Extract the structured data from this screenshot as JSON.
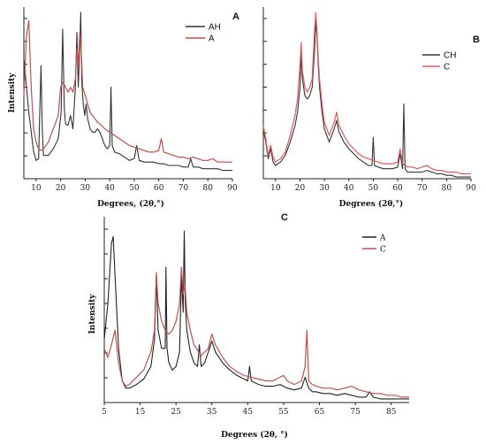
{
  "chart_data": [
    {
      "type": "line",
      "panel_label": "A",
      "xlabel": "Degrees, (2θ,°)",
      "ylabel": "Intensity",
      "xlim": [
        5,
        90
      ],
      "xticks": [
        10,
        20,
        30,
        40,
        50,
        60,
        70,
        80,
        90
      ],
      "legend": "top-right",
      "grid": false,
      "series": [
        {
          "name": "AH",
          "color": "#333333",
          "x": [
            5,
            7,
            9,
            10,
            11,
            11.5,
            12,
            12.5,
            13,
            15,
            17,
            19,
            20.2,
            20.8,
            21.5,
            22,
            23,
            24,
            25,
            25.5,
            26,
            26.6,
            27.2,
            27.8,
            28.2,
            28.6,
            29.2,
            29.8,
            30.4,
            31,
            32,
            33,
            34,
            35,
            36,
            37,
            38,
            39,
            40,
            40.5,
            41,
            42,
            44,
            46,
            48,
            50,
            51,
            52,
            54,
            56,
            58,
            60,
            62,
            64,
            66,
            68,
            70,
            72,
            73,
            74,
            76,
            78,
            80,
            82,
            84,
            86,
            88,
            90
          ],
          "y": [
            0.72,
            0.4,
            0.16,
            0.11,
            0.12,
            0.4,
            0.68,
            0.3,
            0.14,
            0.14,
            0.18,
            0.24,
            0.4,
            0.9,
            0.42,
            0.33,
            0.32,
            0.38,
            0.3,
            0.42,
            0.55,
            0.88,
            0.55,
            0.8,
            1.0,
            0.58,
            0.45,
            0.38,
            0.45,
            0.36,
            0.3,
            0.28,
            0.28,
            0.3,
            0.28,
            0.24,
            0.2,
            0.18,
            0.2,
            0.55,
            0.2,
            0.16,
            0.15,
            0.13,
            0.11,
            0.12,
            0.2,
            0.11,
            0.1,
            0.1,
            0.1,
            0.09,
            0.09,
            0.08,
            0.08,
            0.08,
            0.07,
            0.07,
            0.12,
            0.07,
            0.07,
            0.06,
            0.06,
            0.06,
            0.06,
            0.05,
            0.05,
            0.05
          ]
        },
        {
          "name": "A",
          "color": "#C0504D",
          "x": [
            5,
            6,
            7,
            8,
            9,
            10,
            11,
            12,
            13,
            15,
            17,
            19,
            20,
            21,
            22,
            23,
            24,
            25,
            26,
            26.6,
            27.2,
            27.8,
            28.3,
            29,
            30,
            31,
            32,
            33,
            34,
            35,
            36,
            38,
            40,
            42,
            44,
            46,
            48,
            50,
            52,
            54,
            56,
            58,
            60,
            61,
            62,
            64,
            66,
            68,
            70,
            72,
            74,
            76,
            78,
            80,
            82,
            84,
            86,
            88,
            90
          ],
          "y": [
            0.5,
            0.85,
            0.95,
            0.55,
            0.3,
            0.22,
            0.18,
            0.17,
            0.18,
            0.22,
            0.3,
            0.38,
            0.55,
            0.58,
            0.55,
            0.52,
            0.55,
            0.52,
            0.6,
            0.78,
            0.68,
            0.88,
            0.8,
            0.55,
            0.5,
            0.45,
            0.4,
            0.38,
            0.36,
            0.34,
            0.33,
            0.3,
            0.28,
            0.26,
            0.24,
            0.22,
            0.2,
            0.19,
            0.18,
            0.17,
            0.16,
            0.16,
            0.17,
            0.24,
            0.16,
            0.15,
            0.14,
            0.13,
            0.13,
            0.12,
            0.13,
            0.12,
            0.11,
            0.11,
            0.12,
            0.1,
            0.1,
            0.1,
            0.1
          ]
        }
      ]
    },
    {
      "type": "line",
      "panel_label": "B",
      "xlabel": "Degrees (2θ,°)",
      "ylabel": "",
      "xlim": [
        5,
        90
      ],
      "xticks": [
        10,
        20,
        30,
        40,
        50,
        60,
        70,
        80,
        90
      ],
      "legend": "top-right",
      "grid": false,
      "series": [
        {
          "name": "CH",
          "color": "#333333",
          "x": [
            5,
            6,
            7,
            8,
            9,
            10,
            12,
            14,
            16,
            18,
            19,
            20,
            20.5,
            21,
            22,
            23,
            24,
            25,
            26,
            26.5,
            27,
            27.5,
            28,
            29,
            30,
            32,
            34,
            35,
            36,
            38,
            40,
            42,
            44,
            46,
            48,
            49.5,
            50,
            50.5,
            52,
            54,
            56,
            58,
            60,
            61,
            62,
            62.5,
            63,
            64,
            66,
            68,
            70,
            72,
            74,
            76,
            78,
            80,
            82,
            84,
            86,
            88,
            90
          ],
          "y": [
            0.3,
            0.22,
            0.12,
            0.18,
            0.1,
            0.08,
            0.1,
            0.14,
            0.22,
            0.32,
            0.4,
            0.55,
            0.75,
            0.6,
            0.5,
            0.48,
            0.5,
            0.55,
            0.78,
            0.95,
            0.85,
            0.68,
            0.55,
            0.4,
            0.3,
            0.22,
            0.3,
            0.35,
            0.28,
            0.22,
            0.18,
            0.15,
            0.12,
            0.1,
            0.08,
            0.08,
            0.25,
            0.08,
            0.07,
            0.06,
            0.06,
            0.06,
            0.07,
            0.15,
            0.06,
            0.45,
            0.06,
            0.04,
            0.04,
            0.04,
            0.04,
            0.05,
            0.04,
            0.03,
            0.03,
            0.02,
            0.02,
            0.01,
            0.01,
            0.01,
            0.01
          ]
        },
        {
          "name": "C",
          "color": "#E05A5A",
          "x": [
            5,
            6,
            7,
            8,
            9,
            10,
            12,
            14,
            16,
            18,
            19,
            20,
            20.5,
            21,
            22,
            23,
            24,
            25,
            26,
            26.5,
            27,
            27.5,
            28,
            29,
            30,
            32,
            34,
            35,
            36,
            38,
            40,
            42,
            44,
            46,
            48,
            50,
            52,
            54,
            56,
            58,
            60,
            61,
            62,
            63,
            64,
            66,
            68,
            70,
            72,
            74,
            76,
            78,
            80,
            82,
            84,
            86,
            88,
            90
          ],
          "y": [
            0.32,
            0.24,
            0.14,
            0.2,
            0.13,
            0.1,
            0.12,
            0.16,
            0.26,
            0.38,
            0.48,
            0.68,
            0.82,
            0.65,
            0.55,
            0.52,
            0.55,
            0.6,
            0.9,
            1.0,
            0.88,
            0.72,
            0.6,
            0.45,
            0.34,
            0.26,
            0.34,
            0.4,
            0.32,
            0.26,
            0.21,
            0.18,
            0.15,
            0.13,
            0.12,
            0.11,
            0.1,
            0.09,
            0.09,
            0.09,
            0.1,
            0.18,
            0.09,
            0.08,
            0.07,
            0.07,
            0.06,
            0.07,
            0.08,
            0.06,
            0.05,
            0.05,
            0.04,
            0.04,
            0.04,
            0.03,
            0.03,
            0.03
          ]
        }
      ]
    },
    {
      "type": "line",
      "panel_label": "C",
      "xlabel": "Degrees (2θ, °)",
      "ylabel": "Intensity",
      "xlim": [
        5,
        90
      ],
      "xticks": [
        5,
        15,
        25,
        35,
        45,
        55,
        65,
        75,
        85
      ],
      "legend": "top-right",
      "grid": false,
      "series": [
        {
          "name": "A",
          "color": "#222222",
          "x": [
            5,
            6,
            7,
            7.5,
            8,
            9,
            10,
            11,
            12,
            14,
            16,
            18,
            19,
            19.5,
            20,
            21,
            22,
            22.2,
            22.5,
            23,
            24,
            25,
            26,
            26.5,
            27,
            27.3,
            27.6,
            28,
            29,
            30,
            31,
            31.5,
            32,
            33,
            34,
            35,
            36,
            38,
            40,
            42,
            44,
            45,
            45.5,
            46,
            48,
            50,
            52,
            54,
            56,
            58,
            60,
            61,
            62,
            63,
            64,
            66,
            68,
            70,
            72,
            74,
            76,
            78,
            79,
            80,
            82,
            84,
            86,
            88,
            90
          ],
          "y": [
            0.35,
            0.55,
            0.88,
            0.92,
            0.7,
            0.3,
            0.12,
            0.08,
            0.08,
            0.1,
            0.13,
            0.2,
            0.35,
            0.7,
            0.4,
            0.3,
            0.3,
            0.75,
            0.3,
            0.22,
            0.18,
            0.2,
            0.28,
            0.7,
            0.5,
            0.95,
            0.55,
            0.4,
            0.28,
            0.22,
            0.2,
            0.32,
            0.2,
            0.22,
            0.28,
            0.34,
            0.28,
            0.22,
            0.18,
            0.15,
            0.13,
            0.12,
            0.2,
            0.12,
            0.1,
            0.09,
            0.09,
            0.1,
            0.08,
            0.07,
            0.08,
            0.14,
            0.08,
            0.06,
            0.06,
            0.05,
            0.05,
            0.04,
            0.05,
            0.04,
            0.03,
            0.03,
            0.06,
            0.03,
            0.02,
            0.02,
            0.02,
            0.02,
            0.02
          ]
        },
        {
          "name": "C",
          "color": "#C0504D",
          "x": [
            5,
            6,
            7,
            8,
            9,
            10,
            11,
            12,
            14,
            16,
            18,
            19,
            19.5,
            20,
            21,
            22,
            23,
            24,
            25,
            26,
            26.5,
            27,
            27.5,
            28,
            29,
            30,
            32,
            34,
            35,
            36,
            38,
            40,
            42,
            44,
            46,
            48,
            50,
            52,
            54,
            55,
            56,
            58,
            60,
            61,
            61.5,
            62,
            63,
            64,
            66,
            68,
            70,
            72,
            74,
            76,
            78,
            80,
            82,
            84,
            86,
            88,
            90
          ],
          "y": [
            0.3,
            0.25,
            0.32,
            0.4,
            0.22,
            0.12,
            0.09,
            0.1,
            0.14,
            0.18,
            0.28,
            0.4,
            0.72,
            0.55,
            0.45,
            0.4,
            0.38,
            0.4,
            0.45,
            0.55,
            0.75,
            0.6,
            0.65,
            0.5,
            0.4,
            0.32,
            0.26,
            0.3,
            0.38,
            0.32,
            0.25,
            0.2,
            0.17,
            0.15,
            0.14,
            0.13,
            0.12,
            0.12,
            0.14,
            0.15,
            0.12,
            0.1,
            0.12,
            0.2,
            0.4,
            0.12,
            0.1,
            0.09,
            0.08,
            0.08,
            0.07,
            0.08,
            0.09,
            0.07,
            0.06,
            0.05,
            0.05,
            0.04,
            0.04,
            0.03,
            0.03
          ]
        }
      ]
    }
  ]
}
